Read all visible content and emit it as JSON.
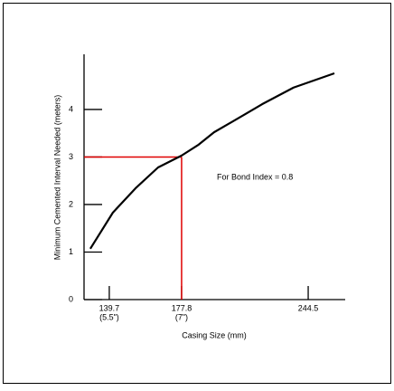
{
  "chart_data": {
    "type": "line",
    "x_label": "Casing Size (mm)",
    "y_label": "Minimum Cemented Interval Needed (meters)",
    "annotation": "For Bond Index = 0.8",
    "x": [
      129.7,
      141.6,
      153.5,
      165.4,
      177.8,
      186.8,
      194.9,
      208.3,
      220.2,
      236.8,
      258.3
    ],
    "series": [
      {
        "color": "#000000",
        "values": [
          1.07,
          1.83,
          2.34,
          2.78,
          3.03,
          3.26,
          3.52,
          3.83,
          4.11,
          4.46,
          4.76
        ]
      }
    ],
    "xlim": [
      126.4,
      264
    ],
    "ylim": [
      0,
      5.16
    ],
    "xticks": [
      139.7,
      177.8,
      244.5
    ],
    "xtick_sublabels": [
      "(5.5\")",
      "(7\")",
      null
    ],
    "yticks": [
      0,
      1,
      2,
      3,
      4
    ],
    "reference": {
      "x": 177.8,
      "y": 3,
      "color": "#e00000"
    }
  }
}
